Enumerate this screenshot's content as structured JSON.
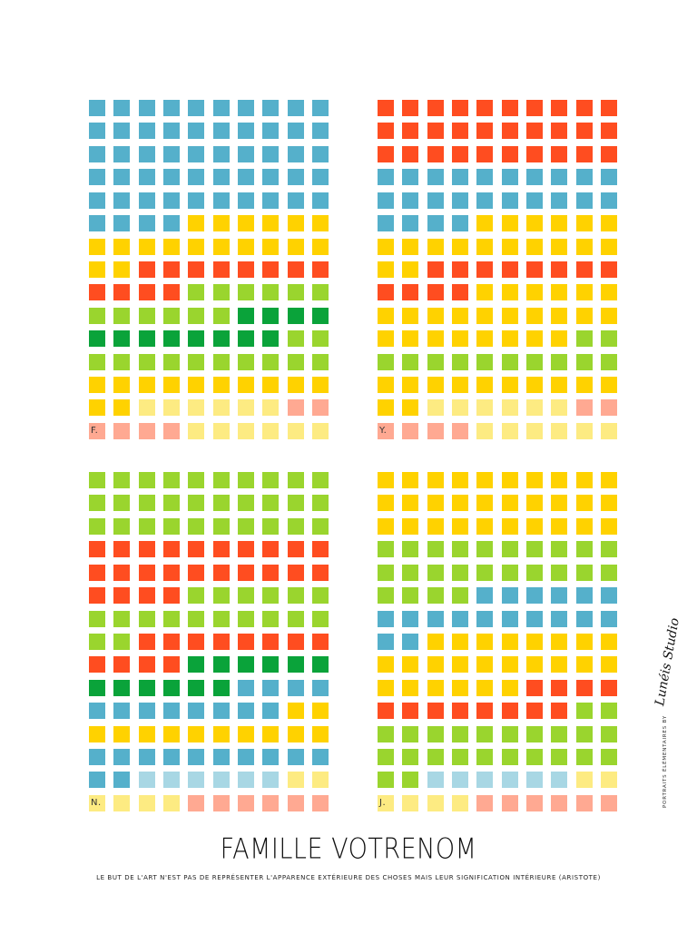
{
  "colors": {
    "B": "#55b0cb",
    "Y": "#ffd200",
    "R": "#ff4d20",
    "G": "#9ad52e",
    "D": "#0aa33a",
    "P": "#fdeb82",
    "S": "#ffa992",
    "L": "#a8d7e4"
  },
  "portraits": [
    {
      "id": "f",
      "initial": "F.",
      "rows": [
        "BBBBBBBBBB",
        "BBBBBBBBBB",
        "BBBBBBBBBB",
        "BBBBBBBBBB",
        "BBBBBBBBBB",
        "BBBBYYYYYY",
        "YYYYYYYYYY",
        "YYRRRRRRRR",
        "RRRRGGGGGG",
        "GGGGGGDDDD",
        "DDDDDDDDGG",
        "GGGGGGGGGG",
        "YYYYYYYYYY",
        "YYPPPPPPSS",
        "SSSSPPPPPP"
      ]
    },
    {
      "id": "y",
      "initial": "Y.",
      "rows": [
        "RRRRRRRRRR",
        "RRRRRRRRRR",
        "RRRRRRRRRR",
        "BBBBBBBBBB",
        "BBBBBBBBBB",
        "BBBBYYYYYY",
        "YYYYYYYYYY",
        "YYRRRRRRRR",
        "RRRRYYYYYY",
        "YYYYYYYYYY",
        "YYYYYYYYGG",
        "GGGGGGGGGG",
        "YYYYYYYYYY",
        "YYPPPPPPSS",
        "SSSSPPPPPP"
      ]
    },
    {
      "id": "n",
      "initial": "N.",
      "rows": [
        "GGGGGGGGGG",
        "GGGGGGGGGG",
        "GGGGGGGGGG",
        "RRRRRRRRRR",
        "RRRRRRRRRR",
        "RRRRGGGGGG",
        "GGGGGGGGGG",
        "GGRRRRRRRR",
        "RRRRDDDDDD",
        "DDDDDDBBBB",
        "BBBBBBBBYY",
        "YYYYYYYYYY",
        "BBBBBBBBBB",
        "BBLLLLLLPP",
        "PPPPSSSSSS"
      ]
    },
    {
      "id": "j",
      "initial": "J.",
      "rows": [
        "YYYYYYYYYY",
        "YYYYYYYYYY",
        "YYYYYYYYYY",
        "GGGGGGGGGG",
        "GGGGGGGGGG",
        "GGGGBBBBBB",
        "BBBBBBBBBB",
        "BBYYYYYYYY",
        "YYYYYYYYYY",
        "YYYYYYRRRR",
        "RRRRRRRRGG",
        "GGGGGGGGGG",
        "GGGGGGGGGG",
        "GGLLLLLLPP",
        "PPPPSSSSSS"
      ]
    }
  ],
  "title": "FAMILLE VOTRENOM",
  "quote": "LE BUT DE L'ART N'EST PAS DE REPRÉSENTER L'APPARENCE EXTÉRIEURE DES CHOSES MAIS LEUR SIGNIFICATION INTÉRIEURE (ARISTOTE)",
  "credit": {
    "text": "PORTRAITS ÉLÉMENTAIRES BY",
    "signature": "Lunéis Studio"
  }
}
